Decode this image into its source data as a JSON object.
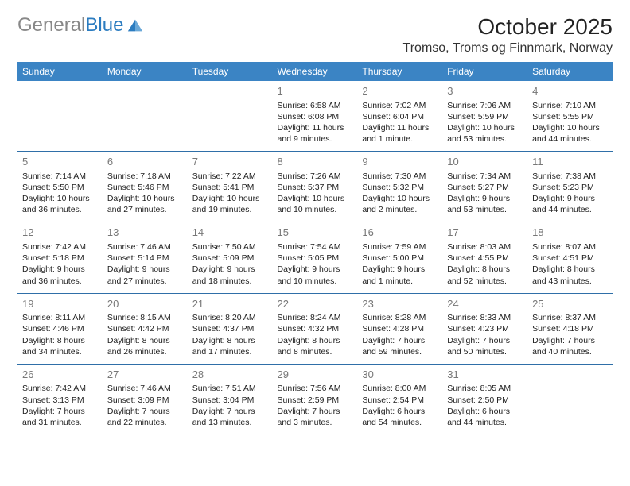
{
  "header": {
    "logo_general": "General",
    "logo_blue": "Blue",
    "month_title": "October 2025",
    "location": "Tromso, Troms og Finnmark, Norway"
  },
  "styling": {
    "header_bg": "#3b84c4",
    "header_text": "#ffffff",
    "row_border": "#2f6fa8",
    "daynum_color": "#777777",
    "body_text": "#222222",
    "logo_gray": "#888888",
    "logo_blue": "#2b7cc0",
    "page_bg": "#ffffff",
    "title_fontsize_pt": 21,
    "location_fontsize_pt": 12,
    "dayheader_fontsize_pt": 9,
    "cell_fontsize_pt": 8
  },
  "day_headers": [
    "Sunday",
    "Monday",
    "Tuesday",
    "Wednesday",
    "Thursday",
    "Friday",
    "Saturday"
  ],
  "weeks": [
    [
      null,
      null,
      null,
      {
        "n": "1",
        "l1": "Sunrise: 6:58 AM",
        "l2": "Sunset: 6:08 PM",
        "l3": "Daylight: 11 hours",
        "l4": "and 9 minutes."
      },
      {
        "n": "2",
        "l1": "Sunrise: 7:02 AM",
        "l2": "Sunset: 6:04 PM",
        "l3": "Daylight: 11 hours",
        "l4": "and 1 minute."
      },
      {
        "n": "3",
        "l1": "Sunrise: 7:06 AM",
        "l2": "Sunset: 5:59 PM",
        "l3": "Daylight: 10 hours",
        "l4": "and 53 minutes."
      },
      {
        "n": "4",
        "l1": "Sunrise: 7:10 AM",
        "l2": "Sunset: 5:55 PM",
        "l3": "Daylight: 10 hours",
        "l4": "and 44 minutes."
      }
    ],
    [
      {
        "n": "5",
        "l1": "Sunrise: 7:14 AM",
        "l2": "Sunset: 5:50 PM",
        "l3": "Daylight: 10 hours",
        "l4": "and 36 minutes."
      },
      {
        "n": "6",
        "l1": "Sunrise: 7:18 AM",
        "l2": "Sunset: 5:46 PM",
        "l3": "Daylight: 10 hours",
        "l4": "and 27 minutes."
      },
      {
        "n": "7",
        "l1": "Sunrise: 7:22 AM",
        "l2": "Sunset: 5:41 PM",
        "l3": "Daylight: 10 hours",
        "l4": "and 19 minutes."
      },
      {
        "n": "8",
        "l1": "Sunrise: 7:26 AM",
        "l2": "Sunset: 5:37 PM",
        "l3": "Daylight: 10 hours",
        "l4": "and 10 minutes."
      },
      {
        "n": "9",
        "l1": "Sunrise: 7:30 AM",
        "l2": "Sunset: 5:32 PM",
        "l3": "Daylight: 10 hours",
        "l4": "and 2 minutes."
      },
      {
        "n": "10",
        "l1": "Sunrise: 7:34 AM",
        "l2": "Sunset: 5:27 PM",
        "l3": "Daylight: 9 hours",
        "l4": "and 53 minutes."
      },
      {
        "n": "11",
        "l1": "Sunrise: 7:38 AM",
        "l2": "Sunset: 5:23 PM",
        "l3": "Daylight: 9 hours",
        "l4": "and 44 minutes."
      }
    ],
    [
      {
        "n": "12",
        "l1": "Sunrise: 7:42 AM",
        "l2": "Sunset: 5:18 PM",
        "l3": "Daylight: 9 hours",
        "l4": "and 36 minutes."
      },
      {
        "n": "13",
        "l1": "Sunrise: 7:46 AM",
        "l2": "Sunset: 5:14 PM",
        "l3": "Daylight: 9 hours",
        "l4": "and 27 minutes."
      },
      {
        "n": "14",
        "l1": "Sunrise: 7:50 AM",
        "l2": "Sunset: 5:09 PM",
        "l3": "Daylight: 9 hours",
        "l4": "and 18 minutes."
      },
      {
        "n": "15",
        "l1": "Sunrise: 7:54 AM",
        "l2": "Sunset: 5:05 PM",
        "l3": "Daylight: 9 hours",
        "l4": "and 10 minutes."
      },
      {
        "n": "16",
        "l1": "Sunrise: 7:59 AM",
        "l2": "Sunset: 5:00 PM",
        "l3": "Daylight: 9 hours",
        "l4": "and 1 minute."
      },
      {
        "n": "17",
        "l1": "Sunrise: 8:03 AM",
        "l2": "Sunset: 4:55 PM",
        "l3": "Daylight: 8 hours",
        "l4": "and 52 minutes."
      },
      {
        "n": "18",
        "l1": "Sunrise: 8:07 AM",
        "l2": "Sunset: 4:51 PM",
        "l3": "Daylight: 8 hours",
        "l4": "and 43 minutes."
      }
    ],
    [
      {
        "n": "19",
        "l1": "Sunrise: 8:11 AM",
        "l2": "Sunset: 4:46 PM",
        "l3": "Daylight: 8 hours",
        "l4": "and 34 minutes."
      },
      {
        "n": "20",
        "l1": "Sunrise: 8:15 AM",
        "l2": "Sunset: 4:42 PM",
        "l3": "Daylight: 8 hours",
        "l4": "and 26 minutes."
      },
      {
        "n": "21",
        "l1": "Sunrise: 8:20 AM",
        "l2": "Sunset: 4:37 PM",
        "l3": "Daylight: 8 hours",
        "l4": "and 17 minutes."
      },
      {
        "n": "22",
        "l1": "Sunrise: 8:24 AM",
        "l2": "Sunset: 4:32 PM",
        "l3": "Daylight: 8 hours",
        "l4": "and 8 minutes."
      },
      {
        "n": "23",
        "l1": "Sunrise: 8:28 AM",
        "l2": "Sunset: 4:28 PM",
        "l3": "Daylight: 7 hours",
        "l4": "and 59 minutes."
      },
      {
        "n": "24",
        "l1": "Sunrise: 8:33 AM",
        "l2": "Sunset: 4:23 PM",
        "l3": "Daylight: 7 hours",
        "l4": "and 50 minutes."
      },
      {
        "n": "25",
        "l1": "Sunrise: 8:37 AM",
        "l2": "Sunset: 4:18 PM",
        "l3": "Daylight: 7 hours",
        "l4": "and 40 minutes."
      }
    ],
    [
      {
        "n": "26",
        "l1": "Sunrise: 7:42 AM",
        "l2": "Sunset: 3:13 PM",
        "l3": "Daylight: 7 hours",
        "l4": "and 31 minutes."
      },
      {
        "n": "27",
        "l1": "Sunrise: 7:46 AM",
        "l2": "Sunset: 3:09 PM",
        "l3": "Daylight: 7 hours",
        "l4": "and 22 minutes."
      },
      {
        "n": "28",
        "l1": "Sunrise: 7:51 AM",
        "l2": "Sunset: 3:04 PM",
        "l3": "Daylight: 7 hours",
        "l4": "and 13 minutes."
      },
      {
        "n": "29",
        "l1": "Sunrise: 7:56 AM",
        "l2": "Sunset: 2:59 PM",
        "l3": "Daylight: 7 hours",
        "l4": "and 3 minutes."
      },
      {
        "n": "30",
        "l1": "Sunrise: 8:00 AM",
        "l2": "Sunset: 2:54 PM",
        "l3": "Daylight: 6 hours",
        "l4": "and 54 minutes."
      },
      {
        "n": "31",
        "l1": "Sunrise: 8:05 AM",
        "l2": "Sunset: 2:50 PM",
        "l3": "Daylight: 6 hours",
        "l4": "and 44 minutes."
      },
      null
    ]
  ]
}
